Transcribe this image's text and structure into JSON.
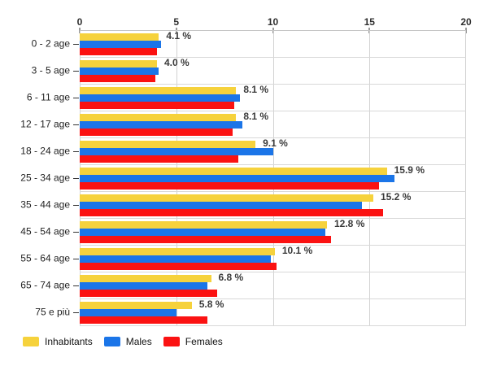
{
  "chart_data": {
    "type": "bar",
    "orientation": "horizontal",
    "title": "",
    "xlabel": "",
    "ylabel": "",
    "xlim": [
      0,
      20
    ],
    "x_ticks": [
      "0",
      "5",
      "10",
      "15",
      "20"
    ],
    "grid": true,
    "legend_position": "bottom-left",
    "categories": [
      "0 - 2 age",
      "3 - 5 age",
      "6 - 11 age",
      "12 - 17 age",
      "18 - 24 age",
      "25 - 34 age",
      "35 - 44 age",
      "45 - 54 age",
      "55 - 64 age",
      "65 - 74 age",
      "75 e più"
    ],
    "series": [
      {
        "name": "Inhabitants",
        "color": "#F6D23C",
        "values": [
          4.1,
          4.0,
          8.1,
          8.1,
          9.1,
          15.9,
          15.2,
          12.8,
          10.1,
          6.8,
          5.8
        ]
      },
      {
        "name": "Males",
        "color": "#1B75E8",
        "values": [
          4.2,
          4.1,
          8.3,
          8.4,
          10.0,
          16.3,
          14.6,
          12.7,
          9.9,
          6.6,
          5.0
        ]
      },
      {
        "name": "Females",
        "color": "#FB1212",
        "values": [
          4.0,
          3.9,
          8.0,
          7.9,
          8.2,
          15.5,
          15.7,
          13.0,
          10.2,
          7.1,
          6.6
        ]
      }
    ],
    "bar_labels": [
      "4.1 %",
      "4.0 %",
      "8.1 %",
      "8.1 %",
      "9.1 %",
      "15.9 %",
      "15.2 %",
      "12.8 %",
      "10.1 %",
      "6.8 %",
      "5.8 %"
    ]
  },
  "colors": {
    "background": "#FFFFFF",
    "gridline": "#D2D2D2",
    "row_separator": "#D8D8D8",
    "tick_mark": "#333333",
    "axis_text": "#2E2E2E",
    "bar_label_text": "#3A3A3A",
    "category_text": "#1F1F1F",
    "legend_text": "#111111"
  }
}
